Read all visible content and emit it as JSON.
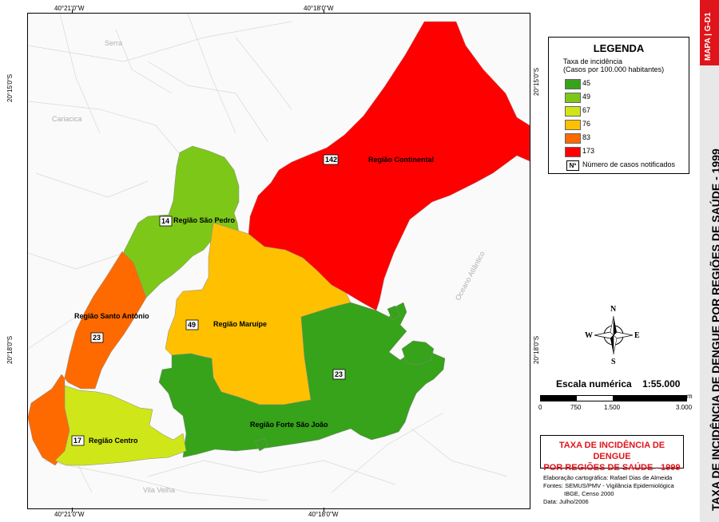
{
  "coords": {
    "top_left": "40°21'0\"W",
    "top_right": "40°18'0\"W",
    "bottom_left": "40°21'0\"W",
    "bottom_right": "40°18'0\"W",
    "left_upper": "20°15'0\"S",
    "left_lower": "20°18'0\"S",
    "right_upper": "20°15'0\"S",
    "right_lower": "20°18'0\"S"
  },
  "places": {
    "serra": "Serra",
    "cariacica": "Cariacica",
    "vila_velha": "Vila Velha",
    "oceano": "Oceano Atlântico"
  },
  "regions": [
    {
      "name": "Região Continental",
      "count": "142",
      "color": "#ff0000"
    },
    {
      "name": "Região São Pedro",
      "count": "14",
      "color": "#7dc719"
    },
    {
      "name": "Região Santo Antônio",
      "count": "23",
      "color": "#ff6a00"
    },
    {
      "name": "Região Maruípe",
      "count": "49",
      "color": "#ffc000"
    },
    {
      "name": "Região Forte São João",
      "count": "23",
      "color": "#36a31a"
    },
    {
      "name": "Região Centro",
      "count": "17",
      "color": "#cfe619"
    }
  ],
  "legend": {
    "title": "LEGENDA",
    "subtitle_1": "Taxa de incidência",
    "subtitle_2": "(Casos por 100.000 habitantes)",
    "items": [
      {
        "label": "45",
        "color": "#36a31a"
      },
      {
        "label": "49",
        "color": "#7dc719"
      },
      {
        "label": "67",
        "color": "#cfe619"
      },
      {
        "label": "76",
        "color": "#ffc000"
      },
      {
        "label": "83",
        "color": "#ff6a00"
      },
      {
        "label": "173",
        "color": "#ff0000"
      }
    ],
    "symbol": "Nº",
    "symbol_label": "Número de casos notificados"
  },
  "compass": {
    "n": "N",
    "s": "S",
    "e": "E",
    "w": "W"
  },
  "scale": {
    "title": "Escala numérica",
    "ratio": "1:55.000",
    "unit": "m",
    "labels": [
      "0",
      "750",
      "1.500",
      "3.000"
    ]
  },
  "title_box": {
    "line1": "TAXA DE INCIDÊNCIA DE DENGUE",
    "line2": "POR REGIÕES DE SAÚDE - 1999"
  },
  "credits": {
    "line1": "Elaboração cartográfica: Rafael Dias de Almeida",
    "line2": "Fontes: SEMUS/PMV - Vigilância Epidemiológica",
    "line3": "IBGE, Censo 2000",
    "line4": "Data: Julho/2006"
  },
  "sidebar_title": "TAXA DE INCIDÊNCIA DE DENGUE POR REGIÕES DE SAÚDE - 1999",
  "map_id": "MAPA | G-D1"
}
